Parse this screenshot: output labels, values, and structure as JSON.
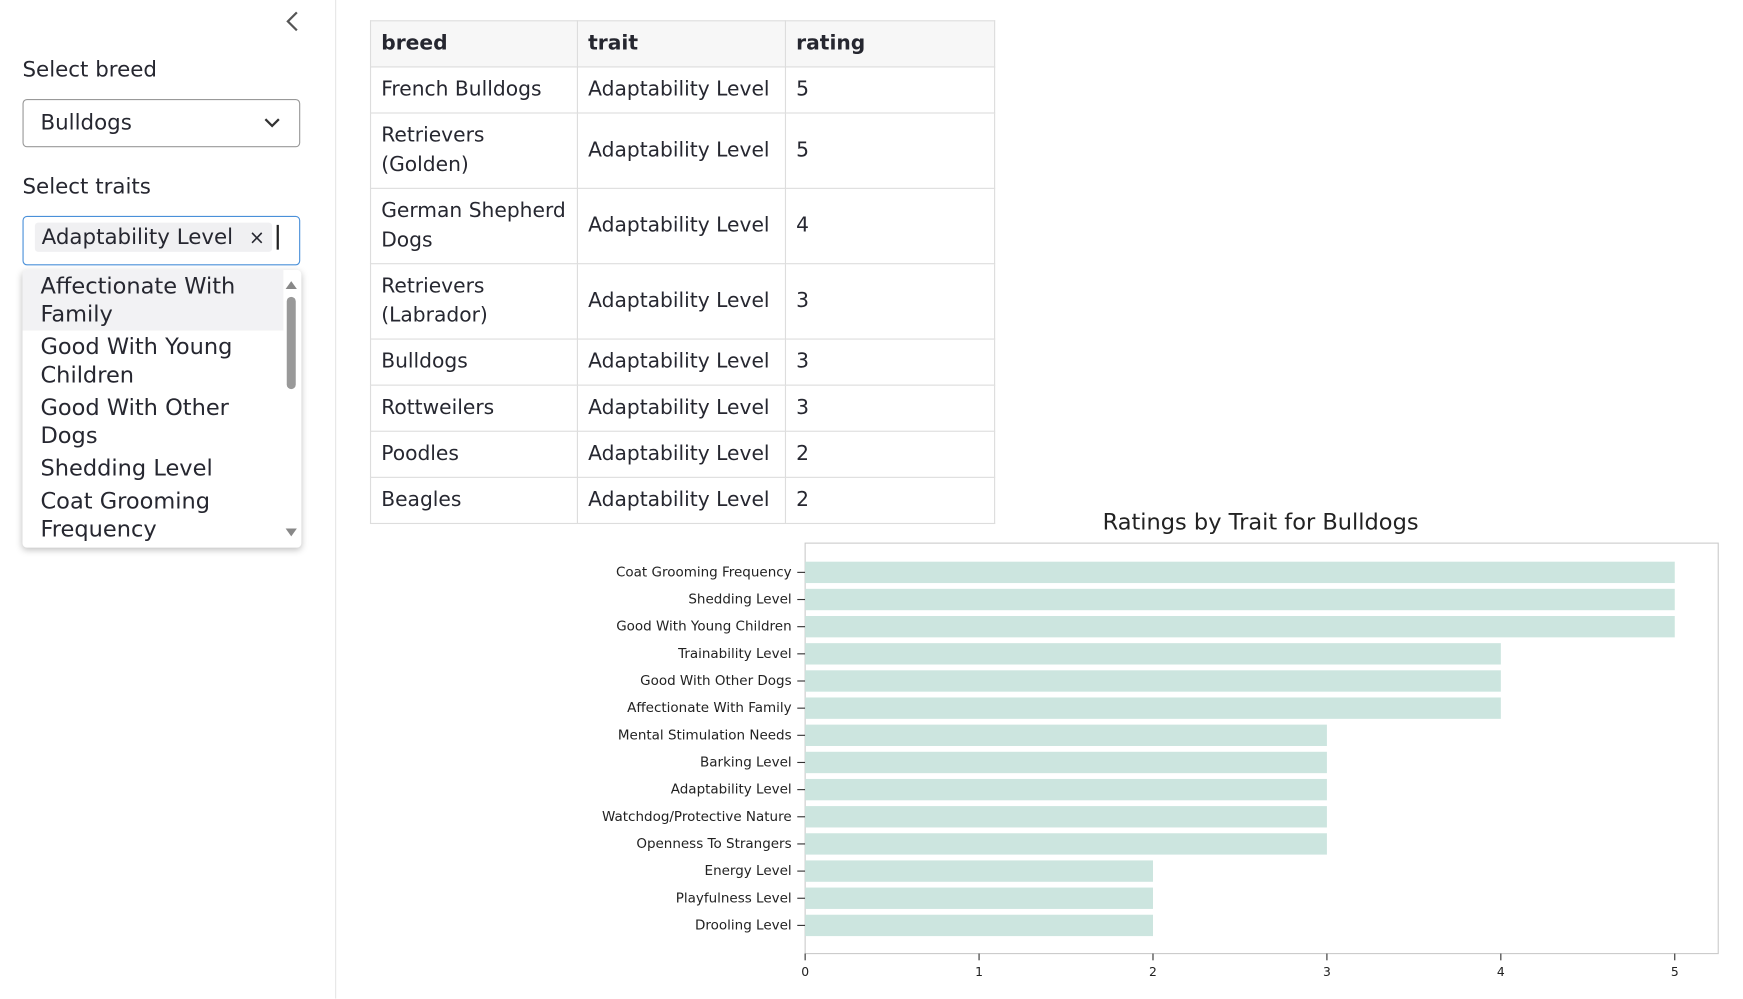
{
  "sidebar": {
    "breed_label": "Select breed",
    "breed_value": "Bulldogs",
    "traits_label": "Select traits",
    "selected_traits": [
      "Adaptability Level"
    ],
    "remove_icon": "×",
    "options": [
      "Affectionate With Family",
      "Good With Young Children",
      "Good With Other Dogs",
      "Shedding Level",
      "Coat Grooming Frequency"
    ]
  },
  "table": {
    "columns": [
      "breed",
      "trait",
      "rating"
    ],
    "rows": [
      [
        "French Bulldogs",
        "Adaptability Level",
        5
      ],
      [
        "Retrievers (Golden)",
        "Adaptability Level",
        5
      ],
      [
        "German Shepherd Dogs",
        "Adaptability Level",
        4
      ],
      [
        "Retrievers (Labrador)",
        "Adaptability Level",
        3
      ],
      [
        "Bulldogs",
        "Adaptability Level",
        3
      ],
      [
        "Rottweilers",
        "Adaptability Level",
        3
      ],
      [
        "Poodles",
        "Adaptability Level",
        2
      ],
      [
        "Beagles",
        "Adaptability Level",
        2
      ]
    ]
  },
  "chart_data": {
    "type": "barh",
    "title": "Ratings by Trait for Bulldogs",
    "categories": [
      "Coat Grooming Frequency",
      "Shedding Level",
      "Good With Young Children",
      "Trainability Level",
      "Good With Other Dogs",
      "Affectionate With Family",
      "Mental Stimulation Needs",
      "Barking Level",
      "Adaptability Level",
      "Watchdog/Protective Nature",
      "Openness To Strangers",
      "Energy Level",
      "Playfulness Level",
      "Drooling Level"
    ],
    "values": [
      5,
      5,
      5,
      4,
      4,
      4,
      3,
      3,
      3,
      3,
      3,
      2,
      2,
      2
    ],
    "color": "#cce5df",
    "xlim": [
      0,
      5.25
    ],
    "xticks": [
      0,
      1,
      2,
      3,
      4,
      5
    ]
  }
}
